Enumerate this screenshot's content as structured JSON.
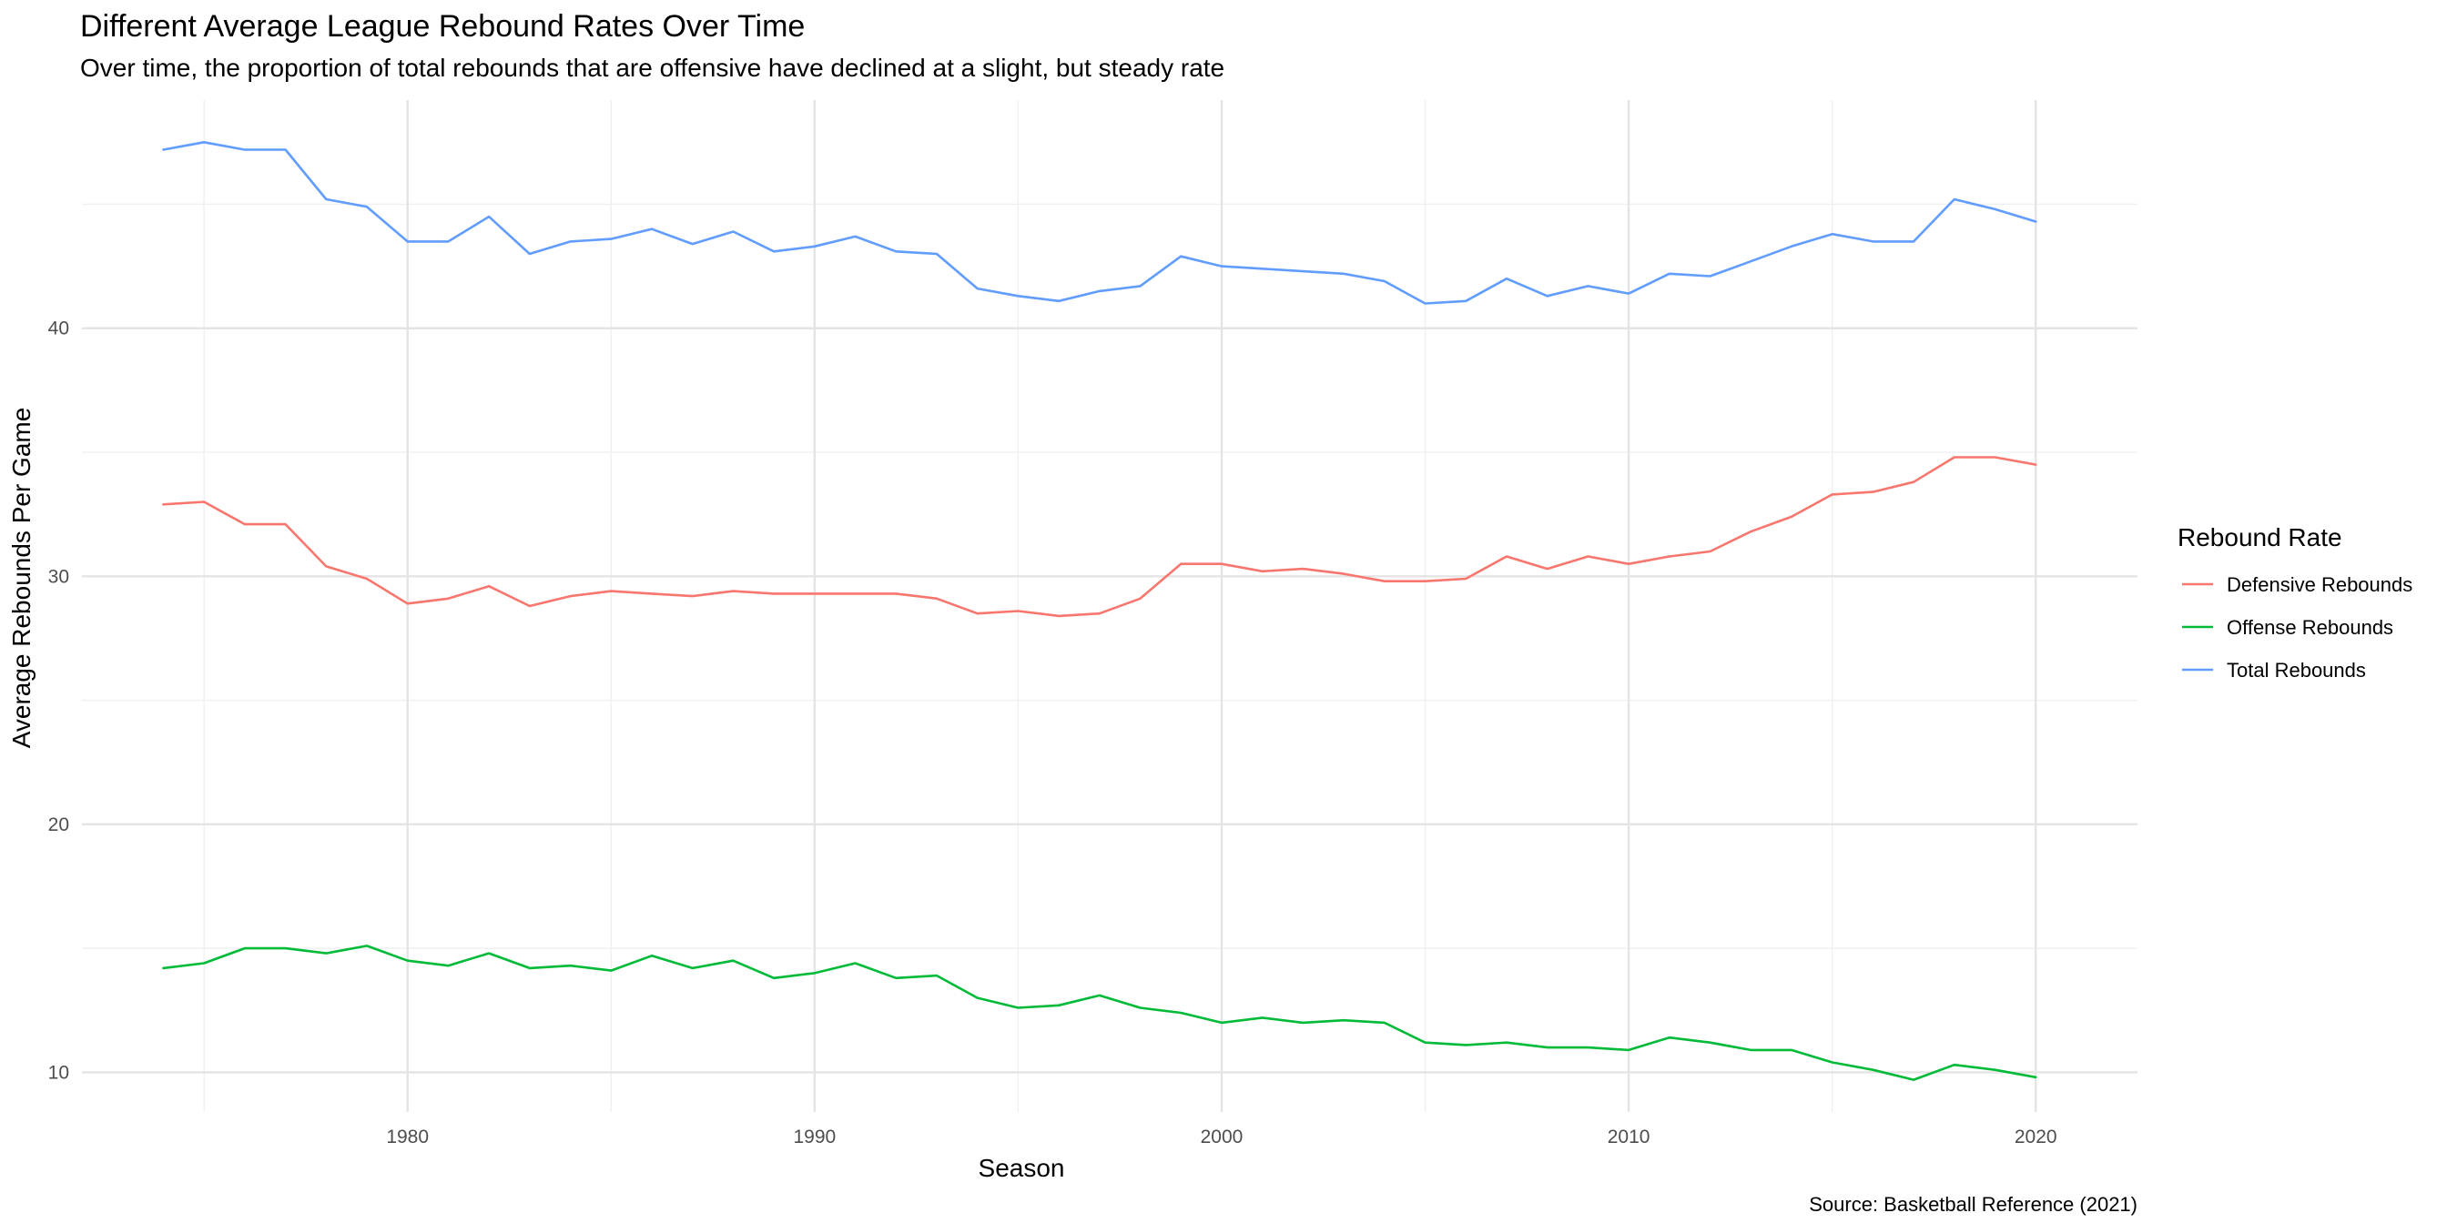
{
  "chart_data": {
    "type": "line",
    "title": "Different Average League Rebound Rates Over Time",
    "subtitle": "Over time, the proportion of total rebounds that are offensive have declined at a slight, but steady rate",
    "xlabel": "Season",
    "ylabel": "Average Rebounds Per Game",
    "caption": "Source: Basketball Reference (2021)",
    "legend_title": "Rebound Rate",
    "legend_position": "right",
    "grid": true,
    "xlim": [
      1972,
      2022.5
    ],
    "ylim": [
      8.4,
      49.2
    ],
    "x_ticks": [
      1980,
      1990,
      2000,
      2010,
      2020
    ],
    "x_minor_ticks": [
      1975,
      1985,
      1995,
      2005,
      2015
    ],
    "y_ticks": [
      10,
      20,
      30,
      40
    ],
    "y_minor_ticks": [
      15,
      25,
      35,
      45
    ],
    "x": [
      1974,
      1975,
      1976,
      1977,
      1978,
      1979,
      1980,
      1981,
      1982,
      1983,
      1984,
      1985,
      1986,
      1987,
      1988,
      1989,
      1990,
      1991,
      1992,
      1993,
      1994,
      1995,
      1996,
      1997,
      1998,
      1999,
      2000,
      2001,
      2002,
      2003,
      2004,
      2005,
      2006,
      2007,
      2008,
      2009,
      2010,
      2011,
      2012,
      2013,
      2014,
      2015,
      2016,
      2017,
      2018,
      2019,
      2020
    ],
    "series": [
      {
        "name": "Defensive Rebounds",
        "color": "#F8766D",
        "values": [
          32.9,
          33.0,
          32.1,
          32.1,
          30.4,
          29.9,
          28.9,
          29.1,
          29.6,
          28.8,
          29.2,
          29.4,
          29.3,
          29.2,
          29.4,
          29.3,
          29.3,
          29.3,
          29.3,
          29.1,
          28.5,
          28.6,
          28.4,
          28.5,
          29.1,
          30.5,
          30.5,
          30.2,
          30.3,
          30.1,
          29.8,
          29.8,
          29.9,
          30.8,
          30.3,
          30.8,
          30.5,
          30.8,
          31.0,
          31.8,
          32.4,
          33.3,
          33.4,
          33.8,
          34.8,
          34.8,
          34.5
        ]
      },
      {
        "name": "Offense Rebounds",
        "color": "#00BA38",
        "values": [
          14.2,
          14.4,
          15.0,
          15.0,
          14.8,
          15.1,
          14.5,
          14.3,
          14.8,
          14.2,
          14.3,
          14.1,
          14.7,
          14.2,
          14.5,
          13.8,
          14.0,
          14.4,
          13.8,
          13.9,
          13.0,
          12.6,
          12.7,
          13.1,
          12.6,
          12.4,
          12.0,
          12.2,
          12.0,
          12.1,
          12.0,
          11.2,
          11.1,
          11.2,
          11.0,
          11.0,
          10.9,
          11.4,
          11.2,
          10.9,
          10.9,
          10.4,
          10.1,
          9.7,
          10.3,
          10.1,
          9.8
        ]
      },
      {
        "name": "Total Rebounds",
        "color": "#619CFF",
        "values": [
          47.2,
          47.5,
          47.2,
          47.2,
          45.2,
          44.9,
          43.5,
          43.5,
          44.5,
          43.0,
          43.5,
          43.6,
          44.0,
          43.4,
          43.9,
          43.1,
          43.3,
          43.7,
          43.1,
          43.0,
          41.6,
          41.3,
          41.1,
          41.5,
          41.7,
          42.9,
          42.5,
          42.4,
          42.3,
          42.2,
          41.9,
          41.0,
          41.1,
          42.0,
          41.3,
          41.7,
          41.4,
          42.2,
          42.1,
          42.7,
          43.3,
          43.8,
          43.5,
          43.5,
          45.2,
          44.8,
          44.3
        ]
      }
    ]
  }
}
